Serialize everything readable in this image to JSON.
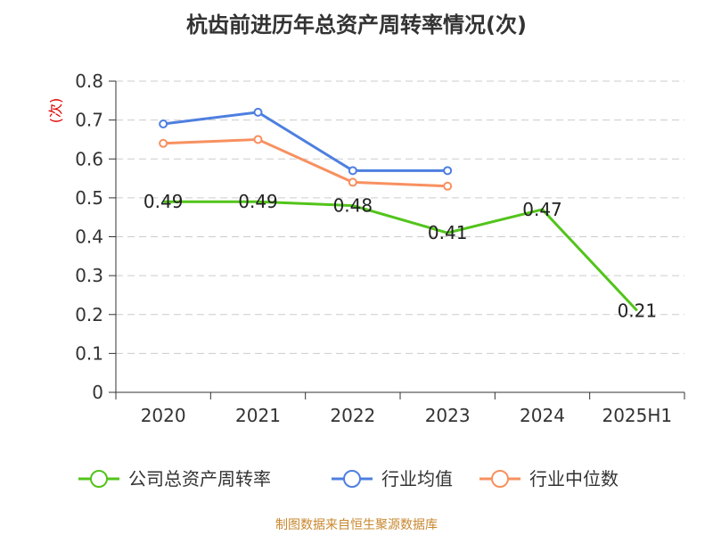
{
  "title": "杭齿前进历年总资产周转率情况(次)",
  "source": "制图数据来自恒生聚源数据库",
  "chart_data": {
    "type": "line",
    "title": "杭齿前进历年总资产周转率情况(次)",
    "ylabel": "(次)",
    "xlabel": "",
    "categories": [
      "2020",
      "2021",
      "2022",
      "2023",
      "2024",
      "2025H1"
    ],
    "ylim": [
      0,
      0.8
    ],
    "yticks": [
      0,
      0.1,
      0.2,
      0.3,
      0.4,
      0.5,
      0.6,
      0.7,
      0.8
    ],
    "grid": true,
    "legend_position": "bottom",
    "series": [
      {
        "name": "公司总资产周转率",
        "color": "#52c41a",
        "values": [
          0.49,
          0.49,
          0.48,
          0.41,
          0.47,
          0.21
        ],
        "show_labels": true
      },
      {
        "name": "行业均值",
        "color": "#4e7fe0",
        "values": [
          0.69,
          0.72,
          0.57,
          0.57,
          null,
          null
        ],
        "show_labels": false
      },
      {
        "name": "行业中位数",
        "color": "#f89060",
        "values": [
          0.64,
          0.65,
          0.54,
          0.53,
          null,
          null
        ],
        "show_labels": false
      }
    ]
  }
}
